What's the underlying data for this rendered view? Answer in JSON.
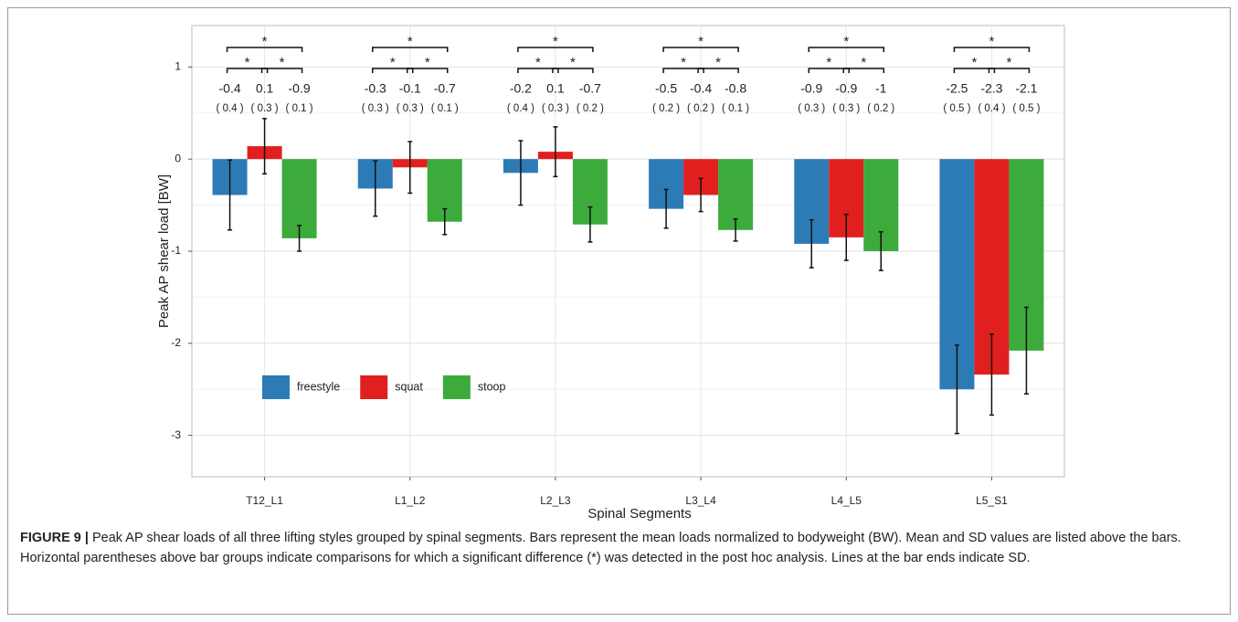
{
  "chart_data": {
    "type": "bar",
    "x_label": "Spinal Segments",
    "y_label": "Peak AP shear load [BW]",
    "categories": [
      "T12_L1",
      "L1_L2",
      "L2_L3",
      "L3_L4",
      "L4_L5",
      "L5_S1"
    ],
    "series": [
      {
        "name": "freestyle",
        "color": "#2d7bb6",
        "values": [
          -0.39,
          -0.32,
          -0.15,
          -0.54,
          -0.92,
          -2.5
        ],
        "value_labels": [
          "-0.4",
          "-0.3",
          "-0.2",
          "-0.5",
          "-0.9",
          "-2.5"
        ],
        "errors": [
          0.38,
          0.3,
          0.35,
          0.21,
          0.26,
          0.48
        ],
        "error_labels": [
          "( 0.4 )",
          "( 0.3 )",
          "( 0.4 )",
          "( 0.2 )",
          "( 0.3 )",
          "( 0.5 )"
        ]
      },
      {
        "name": "squat",
        "color": "#e21f1f",
        "values": [
          0.14,
          -0.09,
          0.08,
          -0.39,
          -0.85,
          -2.34
        ],
        "value_labels": [
          "0.1",
          "-0.1",
          "0.1",
          "-0.4",
          "-0.9",
          "-2.3"
        ],
        "errors": [
          0.3,
          0.28,
          0.27,
          0.18,
          0.25,
          0.44
        ],
        "error_labels": [
          "( 0.3 )",
          "( 0.3 )",
          "( 0.3 )",
          "( 0.2 )",
          "( 0.3 )",
          "( 0.4 )"
        ]
      },
      {
        "name": "stoop",
        "color": "#3cab3c",
        "values": [
          -0.86,
          -0.68,
          -0.71,
          -0.77,
          -1,
          -2.08
        ],
        "value_labels": [
          "-0.9",
          "-0.7",
          "-0.7",
          "-0.8",
          "-1",
          "-2.1"
        ],
        "errors": [
          0.14,
          0.14,
          0.19,
          0.12,
          0.21,
          0.47
        ],
        "error_labels": [
          "( 0.1 )",
          "( 0.1 )",
          "( 0.2 )",
          "( 0.1 )",
          "( 0.2 )",
          "( 0.5 )"
        ]
      }
    ],
    "significance": [
      [
        "*",
        "*",
        "*"
      ],
      [
        "*",
        "*",
        "*"
      ],
      [
        "*",
        "*",
        "*"
      ],
      [
        "*",
        "*",
        "*"
      ],
      [
        "*",
        "*",
        "*"
      ],
      [
        "*",
        "*",
        "*"
      ]
    ],
    "ylim": [
      -3.45,
      1.45
    ],
    "yticks": [
      -3,
      -2,
      -1,
      0,
      1
    ],
    "grid": true,
    "legend": "bottom-left"
  },
  "caption": {
    "label": "FIGURE 9 |",
    "text": "Peak AP shear loads of all three lifting styles grouped by spinal segments. Bars represent the mean loads normalized to bodyweight (BW). Mean and SD values are listed above the bars. Horizontal parentheses above bar groups indicate comparisons for which a significant difference (*) was detected in the post hoc analysis. Lines at the bar ends indicate SD."
  }
}
